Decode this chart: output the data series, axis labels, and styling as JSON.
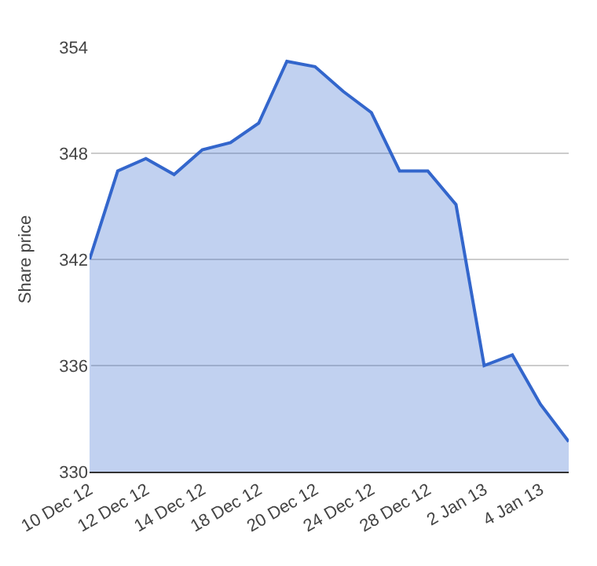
{
  "chart_data": {
    "type": "area",
    "ylabel": "Share price",
    "categories": [
      "10 Dec 12",
      null,
      "12 Dec 12",
      null,
      "14 Dec 12",
      null,
      "18 Dec 12",
      null,
      "20 Dec 12",
      null,
      "24 Dec 12",
      null,
      "28 Dec 12",
      null,
      "2 Jan 13",
      null,
      "4 Jan 13",
      null
    ],
    "series": [
      {
        "color": "#3366cc",
        "values": [
          342.0,
          347.0,
          347.7,
          346.8,
          348.2,
          348.6,
          349.7,
          353.2,
          352.9,
          351.5,
          350.3,
          347.0,
          347.0,
          345.1,
          336.0,
          336.6,
          333.8,
          331.7
        ]
      }
    ],
    "ylim": [
      330,
      354
    ],
    "yticks": [
      330,
      336,
      342,
      348,
      354
    ],
    "grid": "y",
    "legend": false
  }
}
